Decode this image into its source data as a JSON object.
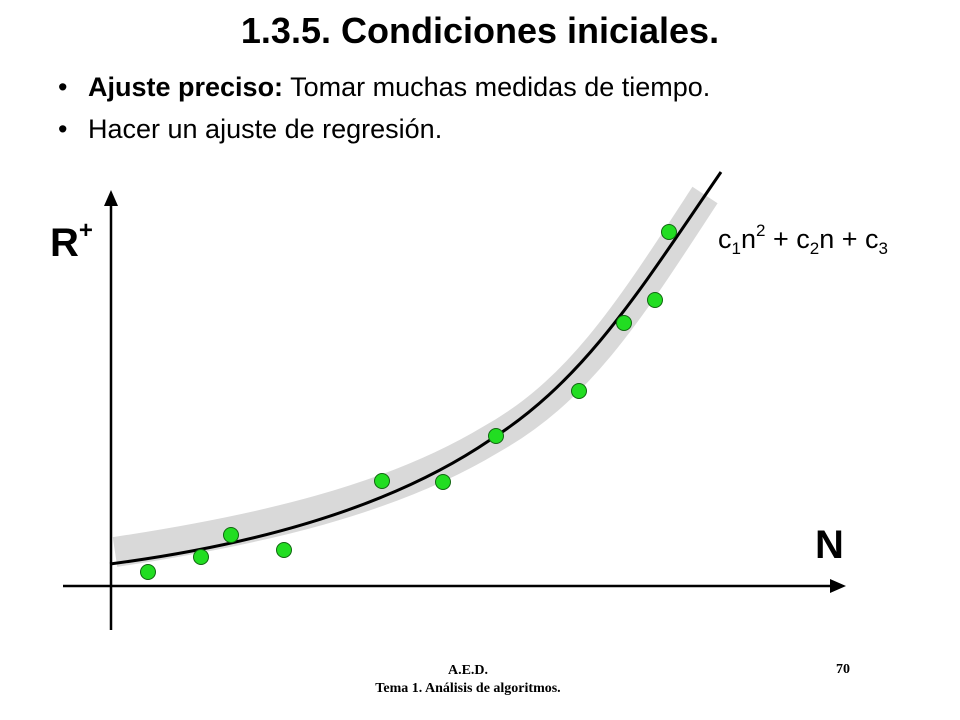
{
  "slide": {
    "title": "1.3.5. Condiciones iniciales.",
    "bullets": [
      {
        "bold": "Ajuste preciso:",
        "text": " Tomar muchas medidas de tiempo."
      },
      {
        "bold": "",
        "text": "Hacer un ajuste de regresión."
      }
    ]
  },
  "diagram": {
    "y_axis_label": "R",
    "y_axis_label_sup": "+",
    "x_axis_label": "N",
    "formula": {
      "c1": "c",
      "s1": "1",
      "n1": "n",
      "e1": "2",
      "mid": " + c",
      "s2": "2",
      "n2": "n + c",
      "s3": "3"
    },
    "colors": {
      "point": "#22dd22",
      "curve": "#000000",
      "band": "#d9d9d9"
    }
  },
  "footer": {
    "line1": "A.E.D.",
    "line2": "Tema 1. Análisis de algoritmos.",
    "page": "70"
  }
}
